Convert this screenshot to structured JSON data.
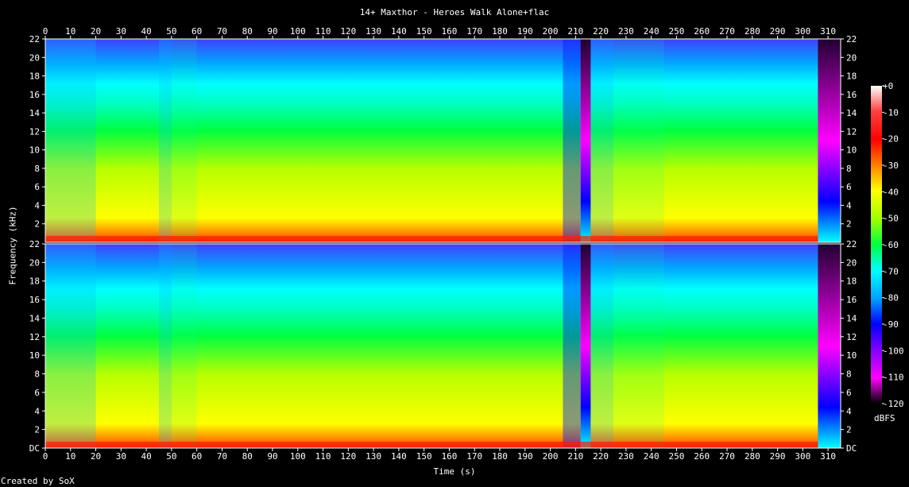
{
  "chart_data": {
    "type": "heatmap",
    "title": "14+ Maxthor - Heroes Walk Alone+flac",
    "xlabel": "Time (s)",
    "ylabel": "Frequency (kHz)",
    "footer": "Created by SoX",
    "colorbar_unit": "dBFS",
    "x_ticks": [
      "0",
      "10",
      "20",
      "30",
      "40",
      "50",
      "60",
      "70",
      "80",
      "90",
      "100",
      "110",
      "120",
      "130",
      "140",
      "150",
      "160",
      "170",
      "180",
      "190",
      "200",
      "210",
      "220",
      "230",
      "240",
      "250",
      "260",
      "270",
      "280",
      "290",
      "300",
      "310"
    ],
    "xlim": [
      0,
      315
    ],
    "y_ticks_top": [
      "2",
      "4",
      "6",
      "8",
      "10",
      "12",
      "14",
      "16",
      "18",
      "20",
      "22"
    ],
    "y_ticks_bottom": [
      "DC",
      "2",
      "4",
      "6",
      "8",
      "10",
      "12",
      "14",
      "16",
      "18",
      "20",
      "22"
    ],
    "ylim": [
      0,
      22
    ],
    "colorbar_ticks": [
      "+0",
      "-10",
      "-20",
      "-30",
      "-40",
      "-50",
      "-60",
      "-70",
      "-80",
      "-90",
      "-100",
      "-110",
      "-120"
    ],
    "colorbar_range": [
      -120,
      0
    ],
    "channels": [
      "left",
      "right"
    ],
    "colors": {
      "background": "#000000",
      "axis": "#ffffff",
      "scale": [
        "#000000",
        "#3a0060",
        "#8000c0",
        "#ff00ff",
        "#0000ff",
        "#00a0ff",
        "#00ffff",
        "#00ff40",
        "#a0ff00",
        "#ffff00",
        "#ff8000",
        "#ff0000",
        "#ffffff"
      ]
    },
    "segments": [
      {
        "from": 0,
        "to": 20,
        "level_db": -62
      },
      {
        "from": 20,
        "to": 45,
        "level_db": -50
      },
      {
        "from": 45,
        "to": 50,
        "level_db": -58
      },
      {
        "from": 50,
        "to": 60,
        "level_db": -54
      },
      {
        "from": 60,
        "to": 205,
        "level_db": -48
      },
      {
        "from": 205,
        "to": 212,
        "level_db": -75
      },
      {
        "from": 212,
        "to": 216,
        "level_db": -105
      },
      {
        "from": 216,
        "to": 225,
        "level_db": -68
      },
      {
        "from": 225,
        "to": 245,
        "level_db": -52
      },
      {
        "from": 245,
        "to": 306,
        "level_db": -46
      },
      {
        "from": 306,
        "to": 315,
        "level_db": -112
      }
    ]
  }
}
